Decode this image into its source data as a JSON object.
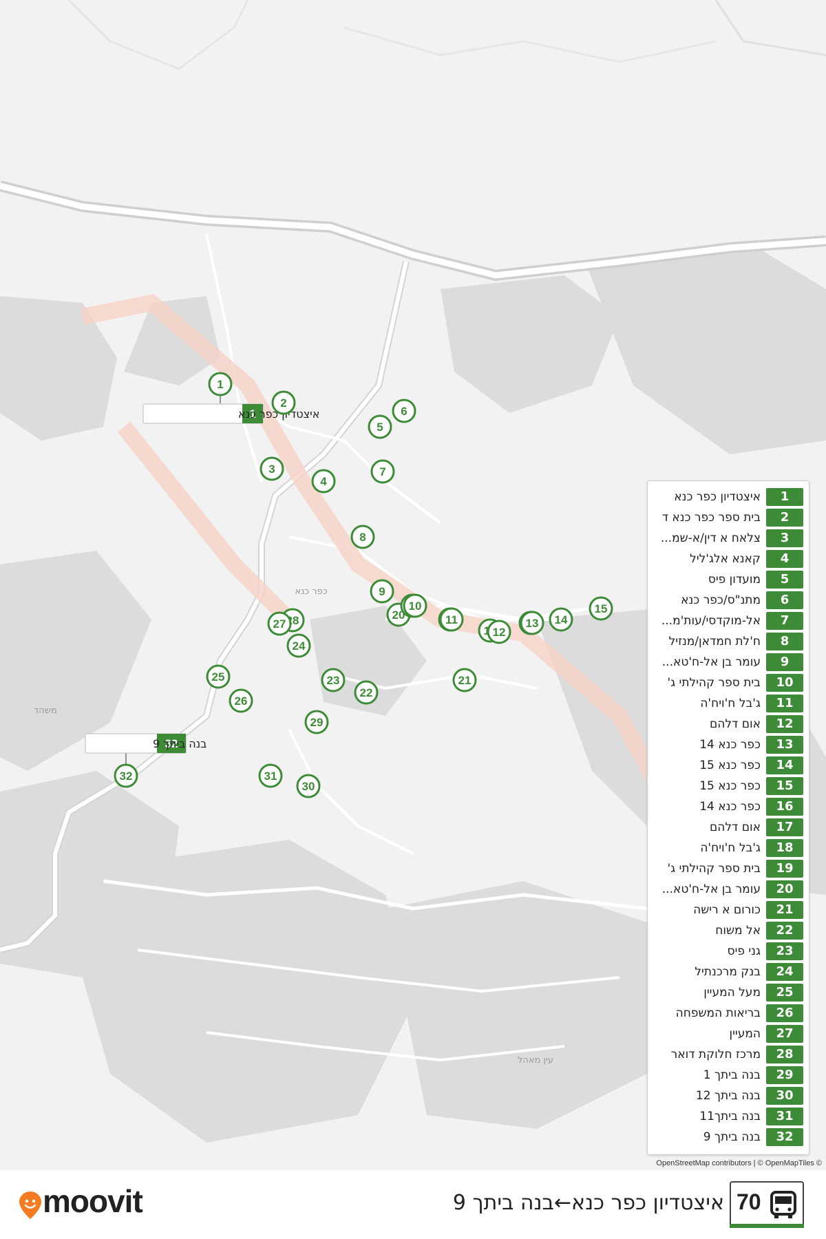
{
  "map": {
    "place_labels": [
      "כפר כנא",
      "משהד",
      "עין מאהל"
    ],
    "colors": {
      "route": "#f4b8a8",
      "stop": "#3d8b37",
      "road": "#ffffff",
      "area": "#d9d9d9"
    }
  },
  "callouts": {
    "first": {
      "num": "1",
      "name": "איצטדיון כפר כנא"
    },
    "last": {
      "num": "32",
      "name": "בנה ביתך 9"
    }
  },
  "stops": [
    {
      "num": "1",
      "name": "איצטדיון כפר כנא"
    },
    {
      "num": "2",
      "name": "בית ספר כפר כנא ד"
    },
    {
      "num": "3",
      "name": "צלאח א דין/א-שמ..."
    },
    {
      "num": "4",
      "name": "קאנא אלג'ליל"
    },
    {
      "num": "5",
      "name": "מועדון פיס"
    },
    {
      "num": "6",
      "name": "מתנ\"ס/כפר כנא"
    },
    {
      "num": "7",
      "name": "אל-מוקדסי/עות'מ..."
    },
    {
      "num": "8",
      "name": "ח'לת חמדאן/מנזיל"
    },
    {
      "num": "9",
      "name": "עומר בן אל-ח'טא..."
    },
    {
      "num": "10",
      "name": "בית ספר קהילתי ג'"
    },
    {
      "num": "11",
      "name": "ג'בל ח'ויח'ה"
    },
    {
      "num": "12",
      "name": "אום דלהם"
    },
    {
      "num": "13",
      "name": "כפר כנא 14"
    },
    {
      "num": "14",
      "name": "כפר כנא 15"
    },
    {
      "num": "15",
      "name": "כפר כנא 15"
    },
    {
      "num": "16",
      "name": "כפר כנא 14"
    },
    {
      "num": "17",
      "name": "אום דלהם"
    },
    {
      "num": "18",
      "name": "ג'בל ח'ויח'ה"
    },
    {
      "num": "19",
      "name": "בית ספר קהילתי ג'"
    },
    {
      "num": "20",
      "name": "עומר בן אל-ח'טא..."
    },
    {
      "num": "21",
      "name": "כורום א רישה"
    },
    {
      "num": "22",
      "name": "אל משוח"
    },
    {
      "num": "23",
      "name": "גני פיס"
    },
    {
      "num": "24",
      "name": "בנק מרכנתיל"
    },
    {
      "num": "25",
      "name": "מעל המעיין"
    },
    {
      "num": "26",
      "name": "בריאות המשפחה"
    },
    {
      "num": "27",
      "name": "המעיין"
    },
    {
      "num": "28",
      "name": "מרכז חלוקת דואר"
    },
    {
      "num": "29",
      "name": "בנה ביתך 1"
    },
    {
      "num": "30",
      "name": "בנה ביתך 12"
    },
    {
      "num": "31",
      "name": "בנה ביתך11"
    },
    {
      "num": "32",
      "name": "בנה ביתך 9"
    }
  ],
  "attribution": "OpenStreetMap contributors | © OpenMapTiles ©",
  "footer": {
    "brand": "moovit",
    "route_number": "70",
    "route_title": "איצטדיון כפר כנא←בנה ביתך 9"
  }
}
